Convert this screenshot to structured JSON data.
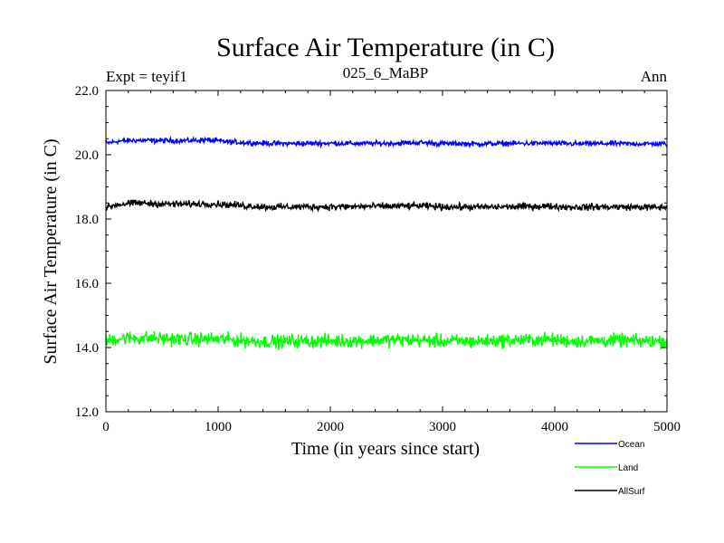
{
  "chart_data": {
    "type": "line",
    "title": "Surface Air Temperature (in C)",
    "subtitle_left": "Expt = teyif1",
    "subtitle_center": "025_6_MaBP",
    "subtitle_right": "Ann",
    "xlabel": "Time (in years since start)",
    "ylabel": "Surface Air Temperature (in C)",
    "xlim": [
      0,
      5000
    ],
    "ylim": [
      12.0,
      22.0
    ],
    "xticks": [
      0,
      1000,
      2000,
      3000,
      4000,
      5000
    ],
    "xtick_labels": [
      "0",
      "1000",
      "2000",
      "3000",
      "4000",
      "5000"
    ],
    "yticks": [
      12.0,
      14.0,
      16.0,
      18.0,
      20.0,
      22.0
    ],
    "ytick_labels": [
      "12.0",
      "14.0",
      "16.0",
      "18.0",
      "20.0",
      "22.0"
    ],
    "grid": false,
    "legend_position": "bottom-right",
    "series": [
      {
        "name": "Ocean",
        "color": "#0000ff",
        "x": [
          0,
          100,
          200,
          300,
          500,
          700,
          900,
          1100,
          1300,
          1500,
          1700,
          2000,
          2300,
          2600,
          2800,
          3000,
          3300,
          3600,
          3900,
          4200,
          4500,
          4800,
          5000
        ],
        "values": [
          20.35,
          20.42,
          20.44,
          20.45,
          20.44,
          20.44,
          20.46,
          20.4,
          20.37,
          20.35,
          20.35,
          20.36,
          20.35,
          20.36,
          20.38,
          20.35,
          20.34,
          20.35,
          20.36,
          20.34,
          20.35,
          20.34,
          20.34
        ],
        "noise": 0.06
      },
      {
        "name": "Land",
        "color": "#00ff00",
        "x": [
          0,
          100,
          200,
          300,
          500,
          700,
          900,
          1100,
          1300,
          1500,
          1700,
          2000,
          2300,
          2600,
          2800,
          3000,
          3300,
          3600,
          3900,
          4200,
          4500,
          4800,
          5000
        ],
        "values": [
          14.2,
          14.28,
          14.3,
          14.3,
          14.28,
          14.25,
          14.27,
          14.24,
          14.2,
          14.18,
          14.2,
          14.2,
          14.22,
          14.24,
          14.22,
          14.2,
          14.19,
          14.22,
          14.25,
          14.2,
          14.22,
          14.2,
          14.2
        ],
        "noise": 0.16
      },
      {
        "name": "AllSurf",
        "color": "#000000",
        "x": [
          0,
          100,
          200,
          300,
          500,
          700,
          900,
          1100,
          1300,
          1500,
          1700,
          2000,
          2300,
          2600,
          2800,
          3000,
          3300,
          3600,
          3900,
          4200,
          4500,
          4800,
          5000
        ],
        "values": [
          18.35,
          18.45,
          18.48,
          18.5,
          18.47,
          18.46,
          18.48,
          18.44,
          18.4,
          18.37,
          18.38,
          18.38,
          18.39,
          18.4,
          18.41,
          18.38,
          18.37,
          18.38,
          18.4,
          18.37,
          18.38,
          18.37,
          18.36
        ],
        "noise": 0.08
      }
    ]
  }
}
